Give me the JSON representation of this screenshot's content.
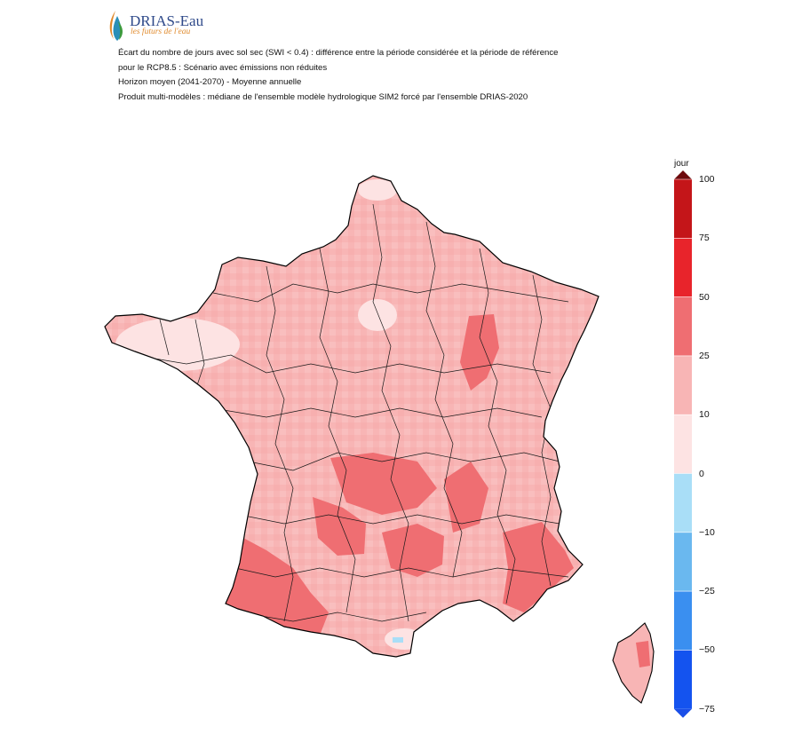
{
  "logo": {
    "name": "DRIAS-Eau",
    "tagline": "les futurs de l'eau",
    "colors": {
      "blue": "#2f4a8a",
      "orange": "#e08a2c",
      "green": "#3c9a3c",
      "teal": "#2a8fb8"
    }
  },
  "titles": [
    "Écart du nombre de jours avec sol sec (SWI < 0.4) : différence entre la période considérée et la période de référence",
    "pour le RCP8.5 : Scénario avec émissions non réduites",
    "Horizon moyen (2041-2070) - Moyenne annuelle",
    "Produit multi-modèles : médiane de l'ensemble modèle hydrologique SIM2 forcé par l'ensemble DRIAS-2020"
  ],
  "map": {
    "region": "France métropolitaine + Corse",
    "dominant_class": "10 to 25",
    "high_anomaly_areas": [
      "Landes / Pyrénées-Atlantiques",
      "Dordogne / Lot",
      "Limousin",
      "Provence / Var",
      "Haute-Marne / Meuse"
    ],
    "colors": {
      "class_0_10": "#fde3e3",
      "class_10_25": "#f8b5b5",
      "class_25_50": "#ef6e72",
      "class_neg": "#a9def7"
    }
  },
  "legend": {
    "unit": "jour",
    "ticks": [
      "100",
      "75",
      "50",
      "25",
      "10",
      "0",
      "−10",
      "−25",
      "−50",
      "−75"
    ],
    "bins": [
      {
        "range": "75 to 100",
        "color": "#c41519"
      },
      {
        "range": "50 to 75",
        "color": "#e8242b"
      },
      {
        "range": "25 to 50",
        "color": "#ef6e72"
      },
      {
        "range": "10 to 25",
        "color": "#f8b5b5"
      },
      {
        "range": "0 to 10",
        "color": "#fde3e3"
      },
      {
        "range": "-10 to 0",
        "color": "#a9def7"
      },
      {
        "range": "-25 to -10",
        "color": "#6ab8ef"
      },
      {
        "range": "-50 to -25",
        "color": "#3a8ff0"
      },
      {
        "range": "-75 to -50",
        "color": "#1453ef"
      }
    ],
    "over_color": "#6d0a0c",
    "under_color": "#1b4fe8"
  }
}
